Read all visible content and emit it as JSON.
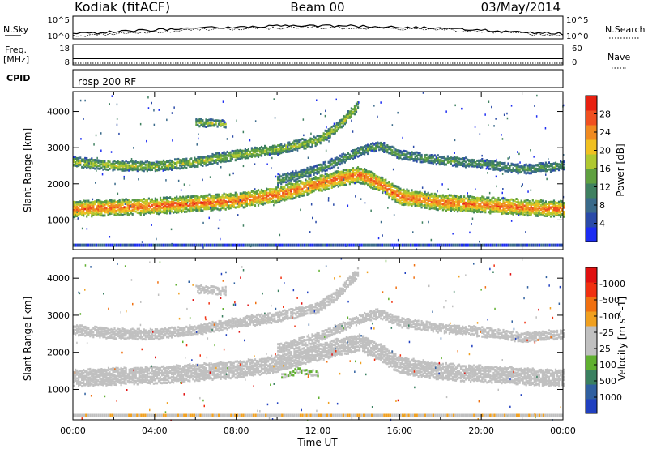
{
  "header": {
    "station": "Kodiak (fitACF)",
    "beam": "Beam 00",
    "date": "03/May/2014"
  },
  "status_panels": {
    "noise": {
      "left_label": "N.Sky",
      "right_label": "N.Search",
      "left_ticks": [
        "10^5",
        "10^0"
      ],
      "right_ticks": [
        "10^5",
        "10^0"
      ]
    },
    "freq": {
      "left_label_line1": "Freq.",
      "left_label_line2": "[MHz]",
      "right_label": "Nave",
      "left_ticks": [
        "18",
        "8"
      ],
      "right_ticks": [
        "60",
        "0"
      ]
    },
    "cpid": {
      "label": "CPID",
      "text": "rbsp 200 RF"
    }
  },
  "chart_data": [
    {
      "type": "heatmap",
      "xlabel": "Time UT",
      "ylabel": "Slant Range [km]",
      "x_ticks": [
        "00:00",
        "04:00",
        "08:00",
        "12:00",
        "16:00",
        "20:00",
        "00:00"
      ],
      "x_range_hours": [
        0,
        24
      ],
      "y_ticks": [
        1000,
        2000,
        3000,
        4000
      ],
      "ylim": [
        180,
        4550
      ],
      "colorbar": {
        "label": "Power [dB]",
        "ticks": [
          "4",
          "8",
          "12",
          "16",
          "20",
          "24",
          "28"
        ],
        "colors": [
          "#1c2cf2",
          "#2a4aa8",
          "#3a6a8a",
          "#3f8060",
          "#5fa040",
          "#b0c830",
          "#f0c020",
          "#f08a20",
          "#f05020",
          "#e82010"
        ]
      },
      "bands": [
        {
          "name": "main",
          "points": [
            [
              0,
              1300
            ],
            [
              2,
              1350
            ],
            [
              4,
              1380
            ],
            [
              6,
              1460
            ],
            [
              8,
              1530
            ],
            [
              10,
              1700
            ],
            [
              12,
              2000
            ],
            [
              13,
              2150
            ],
            [
              14,
              2250
            ],
            [
              15,
              2000
            ],
            [
              16,
              1650
            ],
            [
              18,
              1480
            ],
            [
              20,
              1420
            ],
            [
              22,
              1350
            ],
            [
              24,
              1300
            ]
          ],
          "width": 380,
          "level": 27
        },
        {
          "name": "upper",
          "points": [
            [
              0,
              2600
            ],
            [
              2,
              2500
            ],
            [
              4,
              2480
            ],
            [
              6,
              2600
            ],
            [
              8,
              2800
            ],
            [
              10,
              2950
            ],
            [
              12,
              3200
            ],
            [
              13,
              3600
            ],
            [
              14,
              4200
            ]
          ],
          "width": 220,
          "level": 18
        },
        {
          "name": "arc",
          "points": [
            [
              10,
              2100
            ],
            [
              12,
              2400
            ],
            [
              14,
              2900
            ],
            [
              15,
              3050
            ],
            [
              16,
              2800
            ],
            [
              18,
              2650
            ],
            [
              20,
              2550
            ],
            [
              22,
              2400
            ],
            [
              24,
              2500
            ]
          ],
          "width": 200,
          "level": 14
        },
        {
          "name": "patch",
          "points": [
            [
              6,
              3700
            ],
            [
              7.5,
              3650
            ]
          ],
          "width": 160,
          "level": 17
        }
      ]
    },
    {
      "type": "heatmap",
      "xlabel": "Time UT",
      "ylabel": "Slant Range [km]",
      "x_ticks": [
        "00:00",
        "04:00",
        "08:00",
        "12:00",
        "16:00",
        "20:00",
        "00:00"
      ],
      "x_range_hours": [
        0,
        24
      ],
      "y_ticks": [
        1000,
        2000,
        3000,
        4000
      ],
      "ylim": [
        180,
        4550
      ],
      "colorbar": {
        "label": "Velocity [m s^-1]",
        "ticks": [
          "1000",
          "500",
          "100",
          "25",
          "-25",
          "-100",
          "-500",
          "-1000"
        ],
        "colors": [
          "#2040c0",
          "#3060a0",
          "#3a8060",
          "#60b030",
          "#c0c0c0",
          "#c0c0c0",
          "#f0a020",
          "#f07010",
          "#f03010",
          "#e01010"
        ]
      },
      "bands": [
        {
          "name": "main",
          "points": [
            [
              0,
              1300
            ],
            [
              2,
              1350
            ],
            [
              4,
              1380
            ],
            [
              6,
              1460
            ],
            [
              8,
              1530
            ],
            [
              10,
              1700
            ],
            [
              12,
              2000
            ],
            [
              13,
              2150
            ],
            [
              14,
              2250
            ],
            [
              15,
              2000
            ],
            [
              16,
              1650
            ],
            [
              18,
              1480
            ],
            [
              20,
              1420
            ],
            [
              22,
              1350
            ],
            [
              24,
              1300
            ]
          ],
          "width": 400,
          "value": 0
        },
        {
          "name": "upper",
          "points": [
            [
              0,
              2600
            ],
            [
              2,
              2500
            ],
            [
              4,
              2480
            ],
            [
              6,
              2600
            ],
            [
              8,
              2800
            ],
            [
              10,
              2950
            ],
            [
              12,
              3200
            ],
            [
              13,
              3600
            ],
            [
              14,
              4200
            ]
          ],
          "width": 220,
          "value": 0
        },
        {
          "name": "arc",
          "points": [
            [
              10,
              2100
            ],
            [
              12,
              2400
            ],
            [
              14,
              2900
            ],
            [
              15,
              3050
            ],
            [
              16,
              2800
            ],
            [
              18,
              2650
            ],
            [
              20,
              2550
            ],
            [
              22,
              2400
            ],
            [
              24,
              2500
            ]
          ],
          "width": 200,
          "value": 0
        },
        {
          "name": "patch",
          "points": [
            [
              6,
              3700
            ],
            [
              7.5,
              3650
            ]
          ],
          "width": 160,
          "value": -150
        },
        {
          "name": "green-arc",
          "points": [
            [
              10.2,
              1350
            ],
            [
              11,
              1500
            ],
            [
              12,
              1420
            ]
          ],
          "width": 90,
          "value": 200
        }
      ]
    }
  ]
}
